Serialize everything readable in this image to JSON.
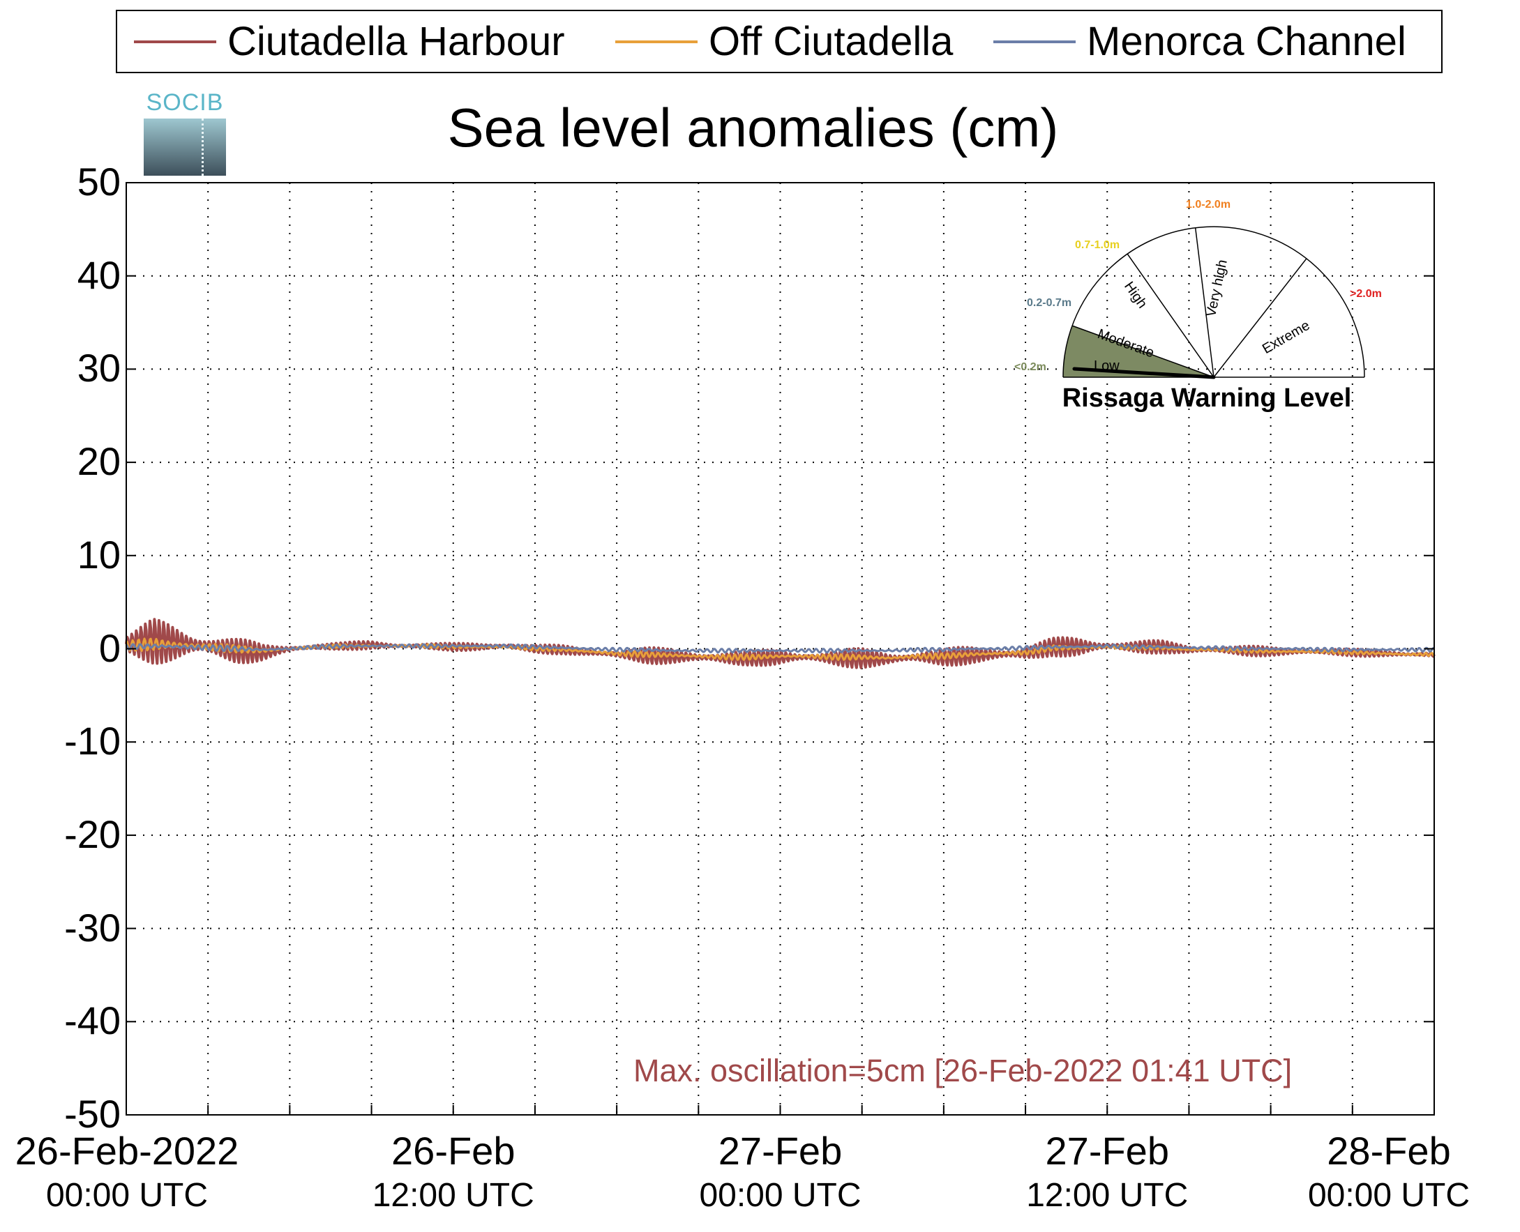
{
  "legend": {
    "items": [
      {
        "label": "Ciutadella Harbour",
        "color": "#a0494a"
      },
      {
        "label": "Off Ciutadella",
        "color": "#e8a03a"
      },
      {
        "label": "Menorca Channel",
        "color": "#6b7ea8"
      }
    ]
  },
  "logo": {
    "text": "SOCIB"
  },
  "title": "Sea level anomalies (cm)",
  "annotation": "Max. oscillation=5cm [26-Feb-2022 01:41 UTC]",
  "gauge": {
    "title": "Rissaga Warning Level",
    "sectors": [
      "Low",
      "Moderate",
      "High",
      "Very high",
      "Extreme"
    ],
    "ranges": [
      "<0.2m",
      "0.2-0.7m",
      "0.7-1.0m",
      "1.0-2.0m",
      ">2.0m"
    ],
    "range_colors": [
      "#7a8a5a",
      "#5a7a8a",
      "#e8d020",
      "#f08020",
      "#e02020"
    ],
    "active_level": "Low",
    "active_color": "#7d8a63"
  },
  "chart_data": {
    "type": "line",
    "title": "Sea level anomalies (cm)",
    "xlabel": "",
    "ylabel": "",
    "x_range_hours": [
      0,
      48
    ],
    "ylim": [
      -50,
      50
    ],
    "yticks": [
      50,
      40,
      30,
      20,
      10,
      0,
      -10,
      -20,
      -30,
      -40,
      -50
    ],
    "xticks": [
      {
        "date": "26-Feb-2022",
        "time": "00:00 UTC",
        "hour": 0
      },
      {
        "date": "26-Feb",
        "time": "12:00 UTC",
        "hour": 12
      },
      {
        "date": "27-Feb",
        "time": "00:00 UTC",
        "hour": 24
      },
      {
        "date": "27-Feb",
        "time": "12:00 UTC",
        "hour": 36
      },
      {
        "date": "28-Feb",
        "time": "00:00 UTC",
        "hour": 48
      }
    ],
    "grid": true,
    "legend_position": "top",
    "series": [
      {
        "name": "Ciutadella Harbour",
        "color": "#a0494a",
        "hours": [
          0,
          1,
          2,
          3,
          4,
          5,
          6,
          7,
          8,
          9,
          10,
          11,
          12,
          13,
          14,
          15,
          16,
          17,
          18,
          19,
          20,
          21,
          22,
          23,
          24,
          25,
          26,
          27,
          28,
          29,
          30,
          31,
          32,
          33,
          34,
          35,
          36,
          37,
          38,
          39,
          40,
          41,
          42,
          43,
          44,
          45,
          46,
          47,
          48
        ],
        "mean": [
          0.5,
          0.8,
          0.5,
          0.3,
          -0.2,
          -0.4,
          0.0,
          0.2,
          0.3,
          0.4,
          0.3,
          0.3,
          0.2,
          0.2,
          0.3,
          0.0,
          -0.1,
          -0.4,
          -0.6,
          -0.7,
          -0.8,
          -0.9,
          -1.0,
          -1.0,
          -0.9,
          -0.9,
          -1.0,
          -1.0,
          -1.1,
          -0.9,
          -0.9,
          -0.7,
          -0.6,
          -0.5,
          0.2,
          0.2,
          0.3,
          0.2,
          0.2,
          -0.1,
          -0.1,
          -0.2,
          -0.3,
          -0.3,
          -0.3,
          -0.4,
          -0.5,
          -0.6,
          -0.6
        ],
        "oscillation_amplitude": [
          1.2,
          2.5,
          2.6,
          2.2,
          1.6,
          0.9,
          0.5,
          0.5,
          0.4,
          0.5,
          0.4,
          0.4,
          0.4,
          0.5,
          0.6,
          0.5,
          0.5,
          0.6,
          0.7,
          0.9,
          0.9,
          1.0,
          1.0,
          0.8,
          1.1,
          0.9,
          1.0,
          1.1,
          1.0,
          1.1,
          1.0,
          1.0,
          1.2,
          1.1,
          1.0,
          1.2,
          0.9,
          0.8,
          0.7,
          0.6,
          0.6,
          0.6,
          0.5,
          0.5,
          0.5,
          0.4,
          0.4,
          0.4,
          0.4
        ]
      },
      {
        "name": "Off Ciutadella",
        "color": "#e8a03a",
        "hours": [
          0,
          1,
          2,
          3,
          4,
          5,
          6,
          7,
          8,
          9,
          10,
          11,
          12,
          13,
          14,
          15,
          16,
          17,
          18,
          19,
          20,
          21,
          22,
          23,
          24,
          25,
          26,
          27,
          28,
          29,
          30,
          31,
          32,
          33,
          34,
          35,
          36,
          37,
          38,
          39,
          40,
          41,
          42,
          43,
          44,
          45,
          46,
          47,
          48
        ],
        "mean": [
          0.3,
          0.5,
          0.4,
          0.2,
          0.0,
          -0.2,
          0.0,
          0.2,
          0.3,
          0.3,
          0.3,
          0.3,
          0.2,
          0.2,
          0.2,
          0.0,
          -0.1,
          -0.3,
          -0.5,
          -0.6,
          -0.7,
          -0.8,
          -0.9,
          -0.9,
          -0.8,
          -0.8,
          -0.9,
          -0.9,
          -1.0,
          -0.8,
          -0.8,
          -0.6,
          -0.5,
          -0.4,
          0.1,
          0.1,
          0.2,
          0.1,
          0.1,
          -0.1,
          -0.1,
          -0.2,
          -0.3,
          -0.3,
          -0.3,
          -0.4,
          -0.5,
          -0.6,
          -0.6
        ],
        "oscillation_amplitude": [
          0.5,
          0.8,
          0.8,
          0.6,
          0.4,
          0.3,
          0.2,
          0.2,
          0.2,
          0.2,
          0.2,
          0.2,
          0.2,
          0.2,
          0.2,
          0.2,
          0.2,
          0.3,
          0.3,
          0.3,
          0.3,
          0.3,
          0.3,
          0.3,
          0.3,
          0.3,
          0.3,
          0.3,
          0.3,
          0.3,
          0.3,
          0.3,
          0.3,
          0.3,
          0.3,
          0.3,
          0.3,
          0.2,
          0.2,
          0.2,
          0.2,
          0.2,
          0.2,
          0.2,
          0.2,
          0.2,
          0.2,
          0.2,
          0.2
        ]
      },
      {
        "name": "Menorca Channel",
        "color": "#6b7ea8",
        "hours": [
          0,
          1,
          2,
          3,
          4,
          5,
          6,
          7,
          8,
          9,
          10,
          11,
          12,
          13,
          14,
          15,
          16,
          17,
          18,
          19,
          20,
          21,
          22,
          23,
          24,
          25,
          26,
          27,
          28,
          29,
          30,
          31,
          32,
          33,
          34,
          35,
          36,
          37,
          38,
          39,
          40,
          41,
          42,
          43,
          44,
          45,
          46,
          47,
          48
        ],
        "mean": [
          0.2,
          0.3,
          0.2,
          0.1,
          0.0,
          -0.1,
          0.0,
          0.2,
          0.3,
          0.3,
          0.3,
          0.3,
          0.3,
          0.3,
          0.3,
          0.2,
          0.1,
          0.0,
          -0.1,
          -0.1,
          -0.2,
          -0.2,
          -0.2,
          -0.2,
          -0.2,
          -0.2,
          -0.2,
          -0.2,
          -0.2,
          -0.1,
          -0.1,
          0.0,
          0.0,
          0.1,
          0.2,
          0.2,
          0.3,
          0.2,
          0.2,
          0.1,
          0.1,
          0.0,
          0.0,
          0.0,
          -0.1,
          -0.1,
          -0.1,
          -0.1,
          -0.1
        ],
        "oscillation_amplitude": [
          0.3,
          0.4,
          0.4,
          0.3,
          0.3,
          0.2,
          0.2,
          0.2,
          0.2,
          0.2,
          0.2,
          0.2,
          0.2,
          0.2,
          0.2,
          0.2,
          0.2,
          0.2,
          0.2,
          0.2,
          0.2,
          0.2,
          0.2,
          0.2,
          0.2,
          0.2,
          0.2,
          0.2,
          0.2,
          0.2,
          0.2,
          0.2,
          0.2,
          0.2,
          0.2,
          0.2,
          0.2,
          0.2,
          0.2,
          0.2,
          0.2,
          0.2,
          0.2,
          0.2,
          0.2,
          0.2,
          0.2,
          0.2,
          0.2
        ]
      }
    ],
    "max_oscillation_cm": 5,
    "max_oscillation_time": "26-Feb-2022 01:41 UTC"
  }
}
